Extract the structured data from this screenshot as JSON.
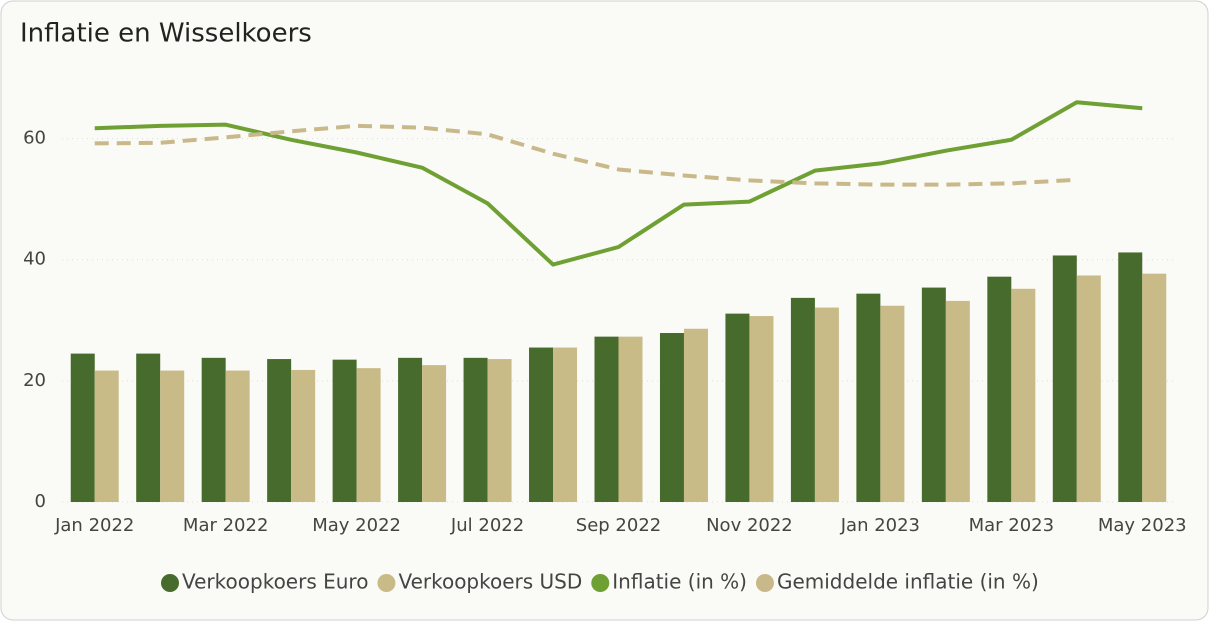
{
  "chart_data": {
    "type": "combo",
    "title": "Inflatie en Wisselkoers",
    "categories": [
      "Jan 2022",
      null,
      "Mar 2022",
      null,
      "May 2022",
      null,
      "Jul 2022",
      null,
      "Sep 2022",
      null,
      "Nov 2022",
      null,
      "Jan 2023",
      null,
      "Mar 2023",
      null,
      "May 2023"
    ],
    "series": [
      {
        "name": "Verkoopkoers Euro",
        "type": "bar",
        "color": "#476b2d",
        "values": [
          24.5,
          24.5,
          23.8,
          23.6,
          23.5,
          23.8,
          23.8,
          25.5,
          27.3,
          27.9,
          31.1,
          33.7,
          34.4,
          35.4,
          37.2,
          40.7,
          41.2
        ]
      },
      {
        "name": "Verkoopkoers USD",
        "type": "bar",
        "color": "#c9bb88",
        "values": [
          21.7,
          21.7,
          21.7,
          21.8,
          22.1,
          22.6,
          23.6,
          25.5,
          27.3,
          28.6,
          30.7,
          32.1,
          32.4,
          33.2,
          35.2,
          37.4,
          37.7
        ]
      },
      {
        "name": "Inflatie (in %)",
        "type": "line",
        "color": "#6fa033",
        "values": [
          61.7,
          62.1,
          62.3,
          59.8,
          57.7,
          55.2,
          49.3,
          39.2,
          42.1,
          49.1,
          49.6,
          54.7,
          55.9,
          58.0,
          59.8,
          66.0,
          65.0
        ]
      },
      {
        "name": "Gemiddelde inflatie (in %)",
        "type": "line",
        "dashed": true,
        "color": "#c9b98a",
        "values": [
          59.2,
          59.3,
          60.2,
          61.2,
          62.1,
          61.8,
          60.7,
          57.5,
          54.9,
          53.9,
          53.1,
          52.6,
          52.4,
          52.4,
          52.6,
          53.2,
          null
        ]
      }
    ],
    "ylim": [
      0,
      70
    ],
    "yticks": [
      0,
      20,
      40,
      60
    ],
    "grid": true,
    "legend": "bottom"
  }
}
